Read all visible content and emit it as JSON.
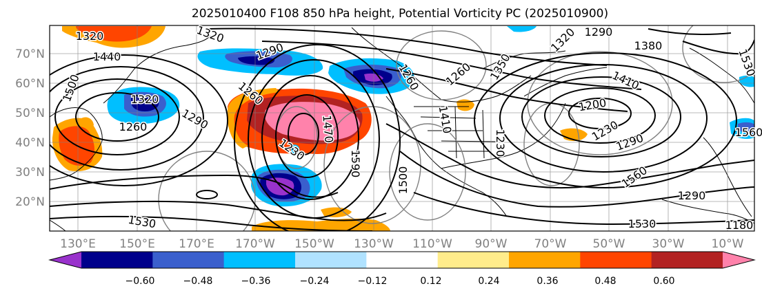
{
  "title": "2025010400 F108 850 hPa height, Potential Vorticity PC (2025010900)",
  "lat_labels": [
    "70°N",
    "60°N",
    "50°N",
    "40°N",
    "30°N",
    "20°N"
  ],
  "lon_labels": [
    "130°E",
    "150°E",
    "170°E",
    "170°W",
    "150°W",
    "130°W",
    "110°W",
    "90°W",
    "70°W",
    "50°W",
    "30°W",
    "10°W"
  ],
  "contour_labels": [
    "1320",
    "1320",
    "1440",
    "1290",
    "1380",
    "1500",
    "1290",
    "1320",
    "1410",
    "1260",
    "1260",
    "1260",
    "1320",
    "1230",
    "1290",
    "1200",
    "1260",
    "1350",
    "1290",
    "1230",
    "1290",
    "1560",
    "1530",
    "1560",
    "1530",
    "1530",
    "1500",
    "1590",
    "1470",
    "1410",
    "1230",
    "1180"
  ],
  "colorbar": {
    "ticks": [
      "−0.60",
      "−0.48",
      "−0.36",
      "−0.24",
      "−0.12",
      "0.12",
      "0.24",
      "0.36",
      "0.48",
      "0.60"
    ],
    "colors": [
      "#9932cc",
      "#00008b",
      "#3a5fcd",
      "#00bfff",
      "#b0e2ff",
      "#ffffff",
      "#ffec8b",
      "#ffa500",
      "#ff4500",
      "#b22222",
      "#ff82ab"
    ]
  },
  "shading_colors": {
    "neg_strong": "#9932cc",
    "neg_dark": "#00008b",
    "neg_mid": "#3a5fcd",
    "neg_light": "#00bfff",
    "neg_pale": "#b0e2ff",
    "pos_pale": "#ffec8b",
    "pos_light": "#ffa500",
    "pos_mid": "#ff4500",
    "pos_dark": "#b22222",
    "pos_strong": "#ff82ab"
  }
}
